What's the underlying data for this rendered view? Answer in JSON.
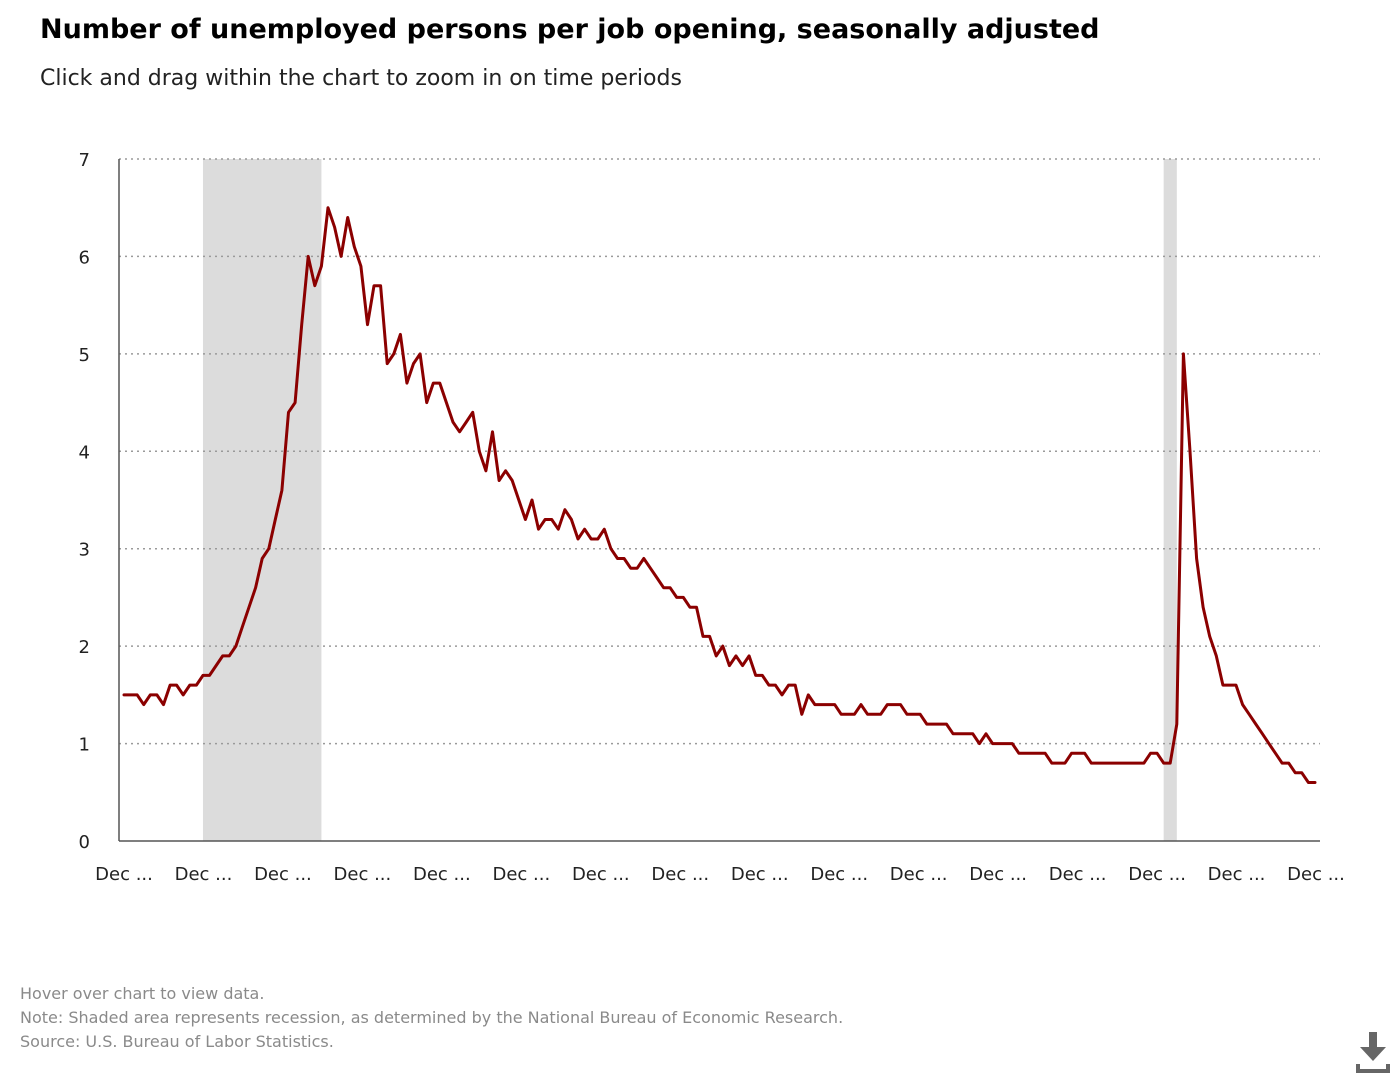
{
  "header": {
    "title": "Number of unemployed persons per job opening, seasonally adjusted",
    "subtitle": "Click and drag within the chart to zoom in on time periods"
  },
  "footer": {
    "hover_note": "Hover over chart to view data.",
    "recession_note": "Note: Shaded area represents recession, as determined by the National Bureau of Economic Research.",
    "source": "Source: U.S. Bureau of Labor Statistics."
  },
  "toolbar": {
    "download_icon": "download-icon"
  },
  "colors": {
    "line": "#8b0000",
    "recession": "#dcdcdc",
    "grid": "#9a9a9a",
    "axis": "#555555"
  },
  "chart_data": {
    "type": "line",
    "title": "Number of unemployed persons per job opening, seasonally adjusted",
    "xlabel": "",
    "ylabel": "",
    "ylim": [
      0,
      7
    ],
    "yticks": [
      0,
      1,
      2,
      3,
      4,
      5,
      6,
      7
    ],
    "x_tick_labels": [
      "Dec ...",
      "Dec ...",
      "Dec ...",
      "Dec ...",
      "Dec ...",
      "Dec ...",
      "Dec ...",
      "Dec ...",
      "Dec ...",
      "Dec ...",
      "Dec ...",
      "Dec ...",
      "Dec ...",
      "Dec ...",
      "Dec ...",
      "Dec ..."
    ],
    "grid": "horizontal dotted",
    "legend": "none",
    "recessions": [
      {
        "start_index": 12,
        "end_index": 30
      },
      {
        "start_index": 158,
        "end_index": 160
      }
    ],
    "series": [
      {
        "values": [
          1.5,
          1.5,
          1.5,
          1.4,
          1.5,
          1.5,
          1.4,
          1.6,
          1.6,
          1.5,
          1.6,
          1.6,
          1.7,
          1.7,
          1.8,
          1.9,
          1.9,
          2.0,
          2.2,
          2.4,
          2.6,
          2.9,
          3.0,
          3.3,
          3.6,
          4.4,
          4.5,
          5.3,
          6.0,
          5.7,
          5.9,
          6.5,
          6.3,
          6.0,
          6.4,
          6.1,
          5.9,
          5.3,
          5.7,
          5.7,
          4.9,
          5.0,
          5.2,
          4.7,
          4.9,
          5.0,
          4.5,
          4.7,
          4.7,
          4.5,
          4.3,
          4.2,
          4.3,
          4.4,
          4.0,
          3.8,
          4.2,
          3.7,
          3.8,
          3.7,
          3.5,
          3.3,
          3.5,
          3.2,
          3.3,
          3.3,
          3.2,
          3.4,
          3.3,
          3.1,
          3.2,
          3.1,
          3.1,
          3.2,
          3.0,
          2.9,
          2.9,
          2.8,
          2.8,
          2.9,
          2.8,
          2.7,
          2.6,
          2.6,
          2.5,
          2.5,
          2.4,
          2.4,
          2.1,
          2.1,
          1.9,
          2.0,
          1.8,
          1.9,
          1.8,
          1.9,
          1.7,
          1.7,
          1.6,
          1.6,
          1.5,
          1.6,
          1.6,
          1.3,
          1.5,
          1.4,
          1.4,
          1.4,
          1.4,
          1.3,
          1.3,
          1.3,
          1.4,
          1.3,
          1.3,
          1.3,
          1.4,
          1.4,
          1.4,
          1.3,
          1.3,
          1.3,
          1.2,
          1.2,
          1.2,
          1.2,
          1.1,
          1.1,
          1.1,
          1.1,
          1.0,
          1.1,
          1.0,
          1.0,
          1.0,
          1.0,
          0.9,
          0.9,
          0.9,
          0.9,
          0.9,
          0.8,
          0.8,
          0.8,
          0.9,
          0.9,
          0.9,
          0.8,
          0.8,
          0.8,
          0.8,
          0.8,
          0.8,
          0.8,
          0.8,
          0.8,
          0.9,
          0.9,
          0.8,
          0.8,
          1.2,
          5.0,
          4.0,
          2.9,
          2.4,
          2.1,
          1.9,
          1.6,
          1.6,
          1.6,
          1.4,
          1.3,
          1.2,
          1.1,
          1.0,
          0.9,
          0.8,
          0.8,
          0.7,
          0.7,
          0.6,
          0.6
        ]
      }
    ]
  }
}
